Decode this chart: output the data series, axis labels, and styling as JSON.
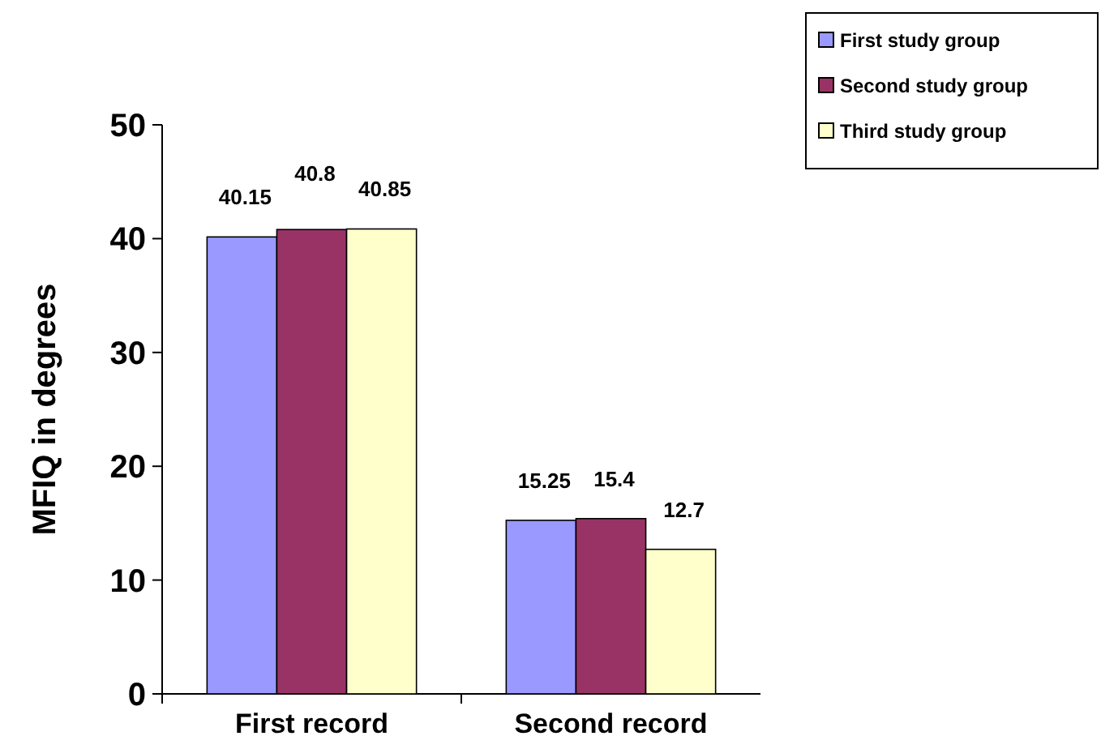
{
  "chart_data": {
    "type": "bar",
    "ylabel": "MFIQ in degrees",
    "categories": [
      "First record",
      "Second record"
    ],
    "series": [
      {
        "name": "First study group",
        "color": "#9999ff",
        "values": [
          40.15,
          15.25
        ]
      },
      {
        "name": "Second study group",
        "color": "#993366",
        "values": [
          40.8,
          15.4
        ]
      },
      {
        "name": "Third study group",
        "color": "#ffffcc",
        "values": [
          40.85,
          12.7
        ]
      }
    ],
    "ylim": [
      0,
      50
    ],
    "yticks": [
      0,
      10,
      20,
      30,
      40,
      50
    ],
    "grid": false,
    "legend": "top right",
    "data_labels": true
  }
}
